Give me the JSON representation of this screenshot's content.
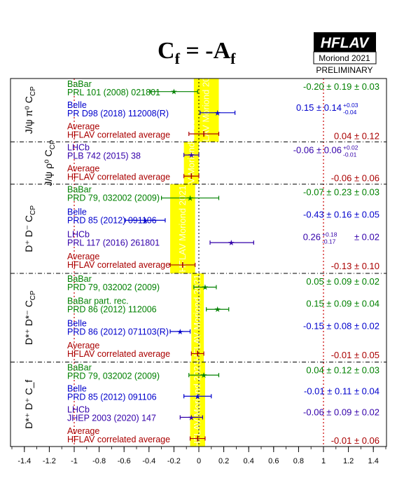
{
  "chart_data": {
    "type": "scatter",
    "title": "C",
    "title_sub": "f",
    "title_eq": " = -A",
    "title_sub2": "f",
    "logo": {
      "name": "HFLAV",
      "conference": "Moriond 2021",
      "status": "PRELIMINARY"
    },
    "watermark": "HFLAV Moriond 2021",
    "xlim": [
      -1.5,
      1.5
    ],
    "x_ticks": [
      "-1.4",
      "-1.2",
      "-1",
      "-0.8",
      "-0.6",
      "-0.4",
      "-0.2",
      "0",
      "0.2",
      "0.4",
      "0.6",
      "0.8",
      "1",
      "1.2",
      "1.4"
    ],
    "x_tick_values": [
      -1.4,
      -1.2,
      -1.0,
      -0.8,
      -0.6,
      -0.4,
      -0.2,
      0,
      0.2,
      0.4,
      0.6,
      0.8,
      1.0,
      1.2,
      1.4
    ],
    "reference_lines": [
      -1,
      1
    ],
    "colors": {
      "BaBar": "#008000",
      "Belle": "#0000cc",
      "LHCb": "#3300aa",
      "Average": "#aa0000",
      "band": "#ffff00"
    },
    "groups": [
      {
        "label": "J/ψ π⁰ C",
        "label_sub": "CP",
        "band": [
          -0.04,
          0.16
        ],
        "measurements": [
          {
            "exp": "BaBar",
            "ref": "PRL 101 (2008) 021801",
            "value": -0.2,
            "err_lo": 0.19,
            "err_hi": 0.19,
            "result": "-0.20 ± 0.19 ± 0.03"
          },
          {
            "exp": "Belle",
            "ref": "PR D98 (2018) 112008(R)",
            "value": 0.15,
            "err_lo": 0.14,
            "err_hi": 0.14,
            "result": "0.15 ± 0.14",
            "syst_hi": "+0.03",
            "syst_lo": "-0.04"
          }
        ],
        "average": {
          "value": 0.04,
          "err": 0.12,
          "result": "0.04 ± 0.12",
          "label": "Average",
          "sub": "HFLAV correlated average"
        }
      },
      {
        "label": "J/ψ ρ⁰ C",
        "label_sub": "CP",
        "band": [
          -0.12,
          0.0
        ],
        "measurements": [
          {
            "exp": "LHCb",
            "ref": "PLB 742 (2015) 38",
            "value": -0.06,
            "err_lo": 0.06,
            "err_hi": 0.06,
            "result": "-0.06 ± 0.06",
            "syst_hi": "+0.02",
            "syst_lo": "-0.01"
          }
        ],
        "average": {
          "value": -0.06,
          "err": 0.06,
          "result": "-0.06 ± 0.06",
          "label": "Average",
          "sub": "HFLAV correlated average"
        }
      },
      {
        "label": "D⁺ D⁻ C",
        "label_sub": "CP",
        "band": [
          -0.23,
          -0.03
        ],
        "measurements": [
          {
            "exp": "BaBar",
            "ref": "PRD 79, 032002 (2009)",
            "value": -0.07,
            "err_lo": 0.23,
            "err_hi": 0.23,
            "result": "-0.07 ± 0.23 ± 0.03"
          },
          {
            "exp": "Belle",
            "ref": "PRD 85 (2012) 091106",
            "value": -0.43,
            "err_lo": 0.16,
            "err_hi": 0.16,
            "result": "-0.43 ± 0.16 ± 0.05"
          },
          {
            "exp": "LHCb",
            "ref": "PRL 117 (2016) 261801",
            "value": 0.26,
            "err_lo": 0.17,
            "err_hi": 0.18,
            "result": "0.26",
            "stat_hi": "+0.18",
            "stat_lo": "-0.17",
            "result_tail": "± 0.02"
          }
        ],
        "average": {
          "value": -0.13,
          "err": 0.1,
          "result": "-0.13 ± 0.10",
          "label": "Average",
          "sub": "HFLAV correlated average"
        }
      },
      {
        "label": "D*⁺ D*⁻ C",
        "label_sub": "CP",
        "band": [
          -0.06,
          0.04
        ],
        "measurements": [
          {
            "exp": "BaBar",
            "ref": "PRD 79, 032002 (2009)",
            "value": 0.05,
            "err_lo": 0.09,
            "err_hi": 0.09,
            "result": "0.05 ± 0.09 ± 0.02"
          },
          {
            "exp": "BaBar part. rec.",
            "ref": "PRD 86 (2012) 112006",
            "value": 0.15,
            "err_lo": 0.09,
            "err_hi": 0.09,
            "result": "0.15 ± 0.09 ± 0.04",
            "color_key": "BaBar"
          },
          {
            "exp": "Belle",
            "ref": "PRD 86 (2012) 071103(R)",
            "value": -0.15,
            "err_lo": 0.08,
            "err_hi": 0.08,
            "result": "-0.15 ± 0.08 ± 0.02"
          }
        ],
        "average": {
          "value": -0.01,
          "err": 0.05,
          "result": "-0.01 ± 0.05",
          "label": "Average",
          "sub": "HFLAV correlated average"
        }
      },
      {
        "label": "D*⁺ D⁺ C_f",
        "label_sub": "",
        "band": [
          -0.07,
          0.05
        ],
        "measurements": [
          {
            "exp": "BaBar",
            "ref": "PRD 79, 032002 (2009)",
            "value": 0.04,
            "err_lo": 0.12,
            "err_hi": 0.12,
            "result": "0.04 ± 0.12 ± 0.03"
          },
          {
            "exp": "Belle",
            "ref": "PRD 85 (2012) 091106",
            "value": -0.01,
            "err_lo": 0.11,
            "err_hi": 0.11,
            "result": "-0.01 ± 0.11 ± 0.04"
          },
          {
            "exp": "LHCb",
            "ref": "JHEP 2003 (2020) 147",
            "value": -0.06,
            "err_lo": 0.09,
            "err_hi": 0.09,
            "result": "-0.06 ± 0.09 ± 0.02"
          }
        ],
        "average": {
          "value": -0.01,
          "err": 0.06,
          "result": "-0.01 ± 0.06",
          "label": "Average",
          "sub": "HFLAV correlated average"
        }
      }
    ]
  }
}
